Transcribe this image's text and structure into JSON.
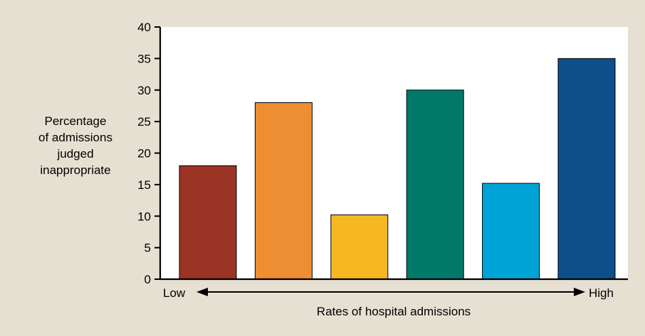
{
  "chart_data": {
    "type": "bar",
    "categories": [
      "",
      "",
      "",
      "",
      "",
      ""
    ],
    "values": [
      18,
      28,
      10.2,
      30,
      15.2,
      35
    ],
    "colors": [
      "#9b3425",
      "#ee8e32",
      "#f5b822",
      "#00796b",
      "#00a3d6",
      "#0e4f8b"
    ],
    "ylabel_lines": [
      "Percentage",
      "of admissions",
      "judged",
      "inappropriate"
    ],
    "xlabel": "Rates of hospital admissions",
    "x_arrow_left_label": "Low",
    "x_arrow_right_label": "High",
    "ylim": [
      0,
      40
    ],
    "yticks": [
      0,
      5,
      10,
      15,
      20,
      25,
      30,
      35,
      40
    ],
    "grid": false,
    "legend": false
  }
}
